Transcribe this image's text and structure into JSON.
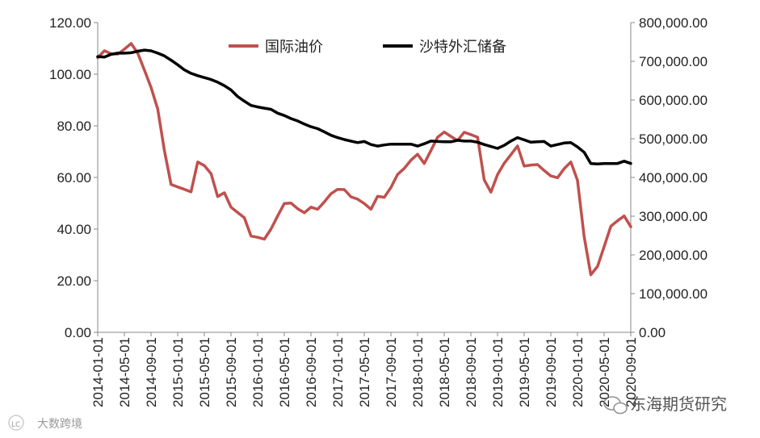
{
  "chart_data": {
    "type": "line",
    "title": "",
    "legend_position": "top-center",
    "grid": false,
    "x": [
      "2014-01-01",
      "2014-02-01",
      "2014-03-01",
      "2014-04-01",
      "2014-05-01",
      "2014-06-01",
      "2014-07-01",
      "2014-08-01",
      "2014-09-01",
      "2014-10-01",
      "2014-11-01",
      "2014-12-01",
      "2015-01-01",
      "2015-02-01",
      "2015-03-01",
      "2015-04-01",
      "2015-05-01",
      "2015-06-01",
      "2015-07-01",
      "2015-08-01",
      "2015-09-01",
      "2015-10-01",
      "2015-11-01",
      "2015-12-01",
      "2016-01-01",
      "2016-02-01",
      "2016-03-01",
      "2016-04-01",
      "2016-05-01",
      "2016-06-01",
      "2016-07-01",
      "2016-08-01",
      "2016-09-01",
      "2016-10-01",
      "2016-11-01",
      "2016-12-01",
      "2017-01-01",
      "2017-02-01",
      "2017-03-01",
      "2017-04-01",
      "2017-05-01",
      "2017-06-01",
      "2017-07-01",
      "2017-08-01",
      "2017-09-01",
      "2017-10-01",
      "2017-11-01",
      "2017-12-01",
      "2018-01-01",
      "2018-02-01",
      "2018-03-01",
      "2018-04-01",
      "2018-05-01",
      "2018-06-01",
      "2018-07-01",
      "2018-08-01",
      "2018-09-01",
      "2018-10-01",
      "2018-11-01",
      "2018-12-01",
      "2019-01-01",
      "2019-02-01",
      "2019-03-01",
      "2019-04-01",
      "2019-05-01",
      "2019-06-01",
      "2019-07-01",
      "2019-08-01",
      "2019-09-01",
      "2019-10-01",
      "2019-11-01",
      "2019-12-01",
      "2020-01-01",
      "2020-02-01",
      "2020-03-01",
      "2020-04-01",
      "2020-05-01",
      "2020-06-01",
      "2020-07-01",
      "2020-08-01",
      "2020-09-01"
    ],
    "x_tick_labels": [
      "2014-01-01",
      "2014-05-01",
      "2014-09-01",
      "2015-01-01",
      "2015-05-01",
      "2015-09-01",
      "2016-01-01",
      "2016-05-01",
      "2016-09-01",
      "2017-01-01",
      "2017-05-01",
      "2017-09-01",
      "2018-01-01",
      "2018-05-01",
      "2018-09-01",
      "2019-01-01",
      "2019-05-01",
      "2019-09-01",
      "2020-01-01",
      "2020-05-01",
      "2020-09-01"
    ],
    "y_left": {
      "min": 0,
      "max": 120,
      "step": 20,
      "tick_labels": [
        "0.00",
        "20.00",
        "40.00",
        "60.00",
        "80.00",
        "100.00",
        "120.00"
      ]
    },
    "y_right": {
      "min": 0,
      "max": 800000,
      "step": 100000,
      "tick_labels": [
        "0.00",
        "100,000.00",
        "200,000.00",
        "300,000.00",
        "400,000.00",
        "500,000.00",
        "600,000.00",
        "700,000.00",
        "800,000.00"
      ]
    },
    "series": [
      {
        "name": "国际油价",
        "axis": "left",
        "color": "#C0504D",
        "values": [
          106.4,
          109.1,
          107.9,
          107.8,
          109.7,
          111.9,
          108.2,
          101.6,
          94.9,
          86.5,
          70.5,
          57.3,
          56.3,
          55.4,
          54.4,
          66.0,
          64.6,
          61.5,
          52.6,
          54.1,
          48.5,
          46.4,
          44.4,
          37.3,
          36.8,
          36.1,
          40.0,
          45.1,
          49.9,
          50.1,
          47.9,
          46.3,
          48.5,
          47.7,
          50.5,
          53.7,
          55.4,
          55.3,
          52.5,
          51.6,
          49.9,
          47.7,
          52.7,
          52.3,
          56.1,
          61.2,
          63.5,
          66.7,
          69.0,
          65.4,
          70.4,
          75.6,
          77.6,
          75.9,
          74.3,
          77.5,
          76.6,
          75.6,
          59.1,
          54.3,
          61.1,
          65.5,
          68.8,
          72.2,
          64.4,
          64.8,
          65.0,
          62.7,
          60.6,
          59.9,
          63.4,
          66.0,
          58.9,
          37.0,
          22.3,
          25.5,
          33.2,
          41.1,
          43.2,
          45.1,
          40.9
        ]
      },
      {
        "name": "沙特外汇储备",
        "axis": "right",
        "color": "#000000",
        "values": [
          712000,
          711000,
          718000,
          721000,
          721000,
          722000,
          726000,
          729000,
          727000,
          721000,
          714000,
          703000,
          691000,
          678000,
          669000,
          663000,
          658000,
          653000,
          646000,
          637000,
          626000,
          609000,
          597000,
          586000,
          582000,
          579000,
          576000,
          566000,
          560000,
          552000,
          546000,
          538000,
          531000,
          526000,
          518000,
          509000,
          503000,
          498000,
          494000,
          490000,
          493000,
          485000,
          481000,
          484000,
          486000,
          486000,
          486000,
          486000,
          481000,
          487000,
          494000,
          493000,
          492000,
          492000,
          496000,
          494000,
          494000,
          491000,
          485000,
          480000,
          475000,
          483000,
          494000,
          503000,
          497000,
          491000,
          492000,
          493000,
          481000,
          485000,
          489000,
          490000,
          479000,
          465000,
          436000,
          435000,
          436000,
          436000,
          436000,
          442000,
          436000
        ]
      }
    ]
  },
  "watermark": {
    "right_text": "东海期货研究",
    "left_text": "大数跨境",
    "left_logo": "LC"
  }
}
